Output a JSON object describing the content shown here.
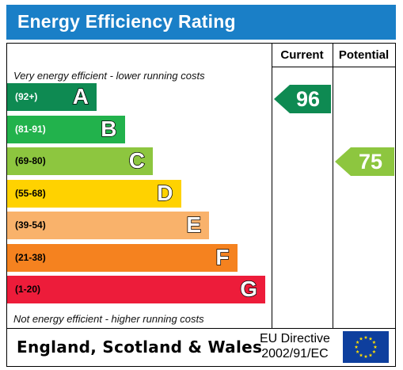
{
  "title": "Energy Efficiency Rating",
  "columns": {
    "current": "Current",
    "potential": "Potential"
  },
  "top_note": "Very energy efficient - lower running costs",
  "bottom_note": "Not energy efficient - higher running costs",
  "bands": [
    {
      "range": "(92+)",
      "letter": "A",
      "color": "#0e8a52",
      "range_color": "#ffffff"
    },
    {
      "range": "(81-91)",
      "letter": "B",
      "color": "#22b24c",
      "range_color": "#ffffff"
    },
    {
      "range": "(69-80)",
      "letter": "C",
      "color": "#8dc63f",
      "range_color": "#000000"
    },
    {
      "range": "(55-68)",
      "letter": "D",
      "color": "#ffd200",
      "range_color": "#000000"
    },
    {
      "range": "(39-54)",
      "letter": "E",
      "color": "#f9b26b",
      "range_color": "#000000"
    },
    {
      "range": "(21-38)",
      "letter": "F",
      "color": "#f5821f",
      "range_color": "#000000"
    },
    {
      "range": "(1-20)",
      "letter": "G",
      "color": "#ed1c3a",
      "range_color": "#000000"
    }
  ],
  "current": {
    "value": "96",
    "band": "A",
    "color": "#0e8a52"
  },
  "potential": {
    "value": "75",
    "band": "C",
    "color": "#8dc63f"
  },
  "footer": {
    "region": "England, Scotland & Wales",
    "directive_line1": "EU Directive",
    "directive_line2": "2002/91/EC"
  }
}
